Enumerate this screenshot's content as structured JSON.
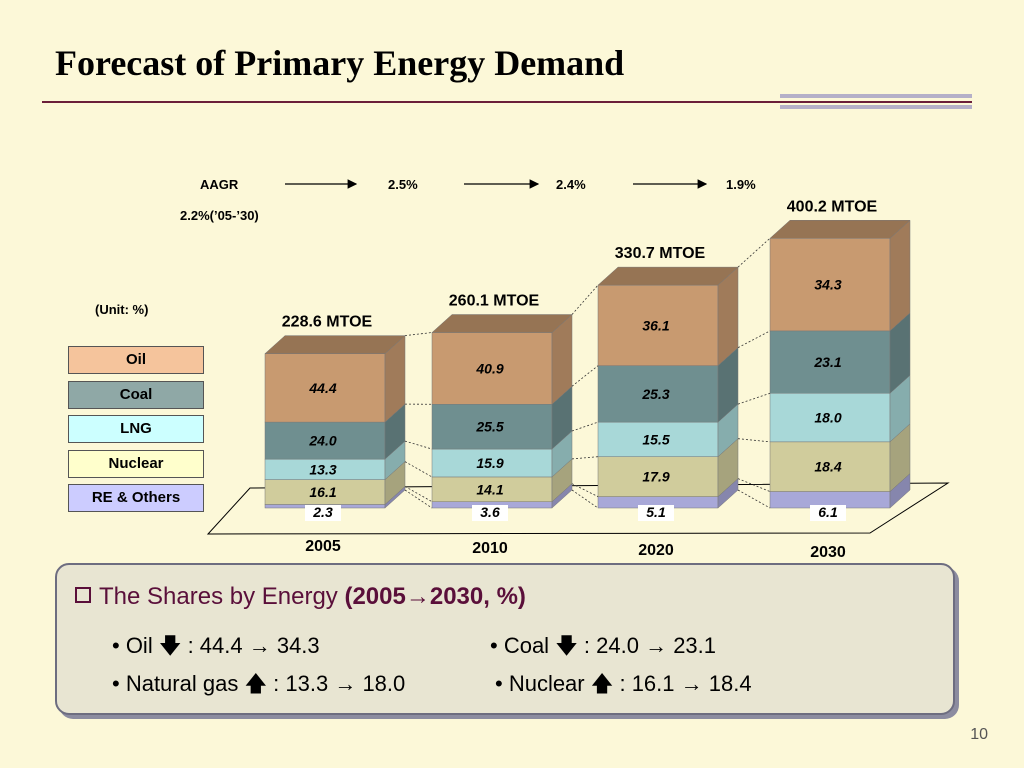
{
  "title": "Forecast of  Primary Energy Demand",
  "unit_label": "(Unit: %)",
  "aagr": {
    "label": "AAGR",
    "overall": "2.2%(’05-’30)",
    "rates": [
      "2.5%",
      "2.4%",
      "1.9%"
    ]
  },
  "legend": [
    {
      "label": "Oil",
      "color": "#f5c49c"
    },
    {
      "label": "Coal",
      "color": "#8fa8a6"
    },
    {
      "label": "LNG",
      "color": "#ccffff"
    },
    {
      "label": "Nuclear",
      "color": "#ffffcc"
    },
    {
      "label": "RE & Others",
      "color": "#ccccff"
    }
  ],
  "chart_data": {
    "type": "bar",
    "stacked": true,
    "categories": [
      "2005",
      "2010",
      "2020",
      "2030"
    ],
    "totals": [
      "228.6 MTOE",
      "260.1 MTOE",
      "330.7 MTOE",
      "400.2 MTOE"
    ],
    "series": [
      {
        "name": "RE & Others",
        "values": [
          2.3,
          3.6,
          5.1,
          6.1
        ],
        "color": "#a8a8d8",
        "labels": [
          "2.3",
          "3.6",
          "5.1",
          "6.1"
        ]
      },
      {
        "name": "Nuclear",
        "values": [
          16.1,
          14.1,
          17.9,
          18.4
        ],
        "color": "#d0cc9c",
        "labels": [
          "16.1",
          "14.1",
          "17.9",
          "18.4"
        ]
      },
      {
        "name": "LNG",
        "values": [
          13.3,
          15.9,
          15.5,
          18.0
        ],
        "color": "#a8d8d8",
        "labels": [
          "13.3",
          "15.9",
          "15.5",
          "18.0"
        ]
      },
      {
        "name": "Coal",
        "values": [
          24.0,
          25.5,
          25.3,
          23.1
        ],
        "color": "#6f8f90",
        "labels": [
          "24.0",
          "25.5",
          "25.3",
          "23.1"
        ]
      },
      {
        "name": "Oil",
        "values": [
          44.4,
          40.9,
          36.1,
          34.3
        ],
        "color": "#c89a70",
        "labels": [
          "44.4",
          "40.9",
          "36.1",
          "34.3"
        ]
      }
    ]
  },
  "summary": {
    "title_prefix": "The Shares by Energy ",
    "title_bold": "(2005→2030, %)",
    "items": [
      {
        "text": "• Oil ",
        "arrow": "🡇",
        "rest": " : 44.4 → 34.3"
      },
      {
        "text": "• Coal ",
        "arrow": "🡇",
        "rest": " : 24.0 → 23.1"
      },
      {
        "text": "• Natural gas ",
        "arrow": "🡅",
        "rest": " : 13.3 → 18.0"
      },
      {
        "text": "• Nuclear ",
        "arrow": "🡅",
        "rest": " : 16.1 → 18.4"
      }
    ]
  },
  "page_number": "10"
}
